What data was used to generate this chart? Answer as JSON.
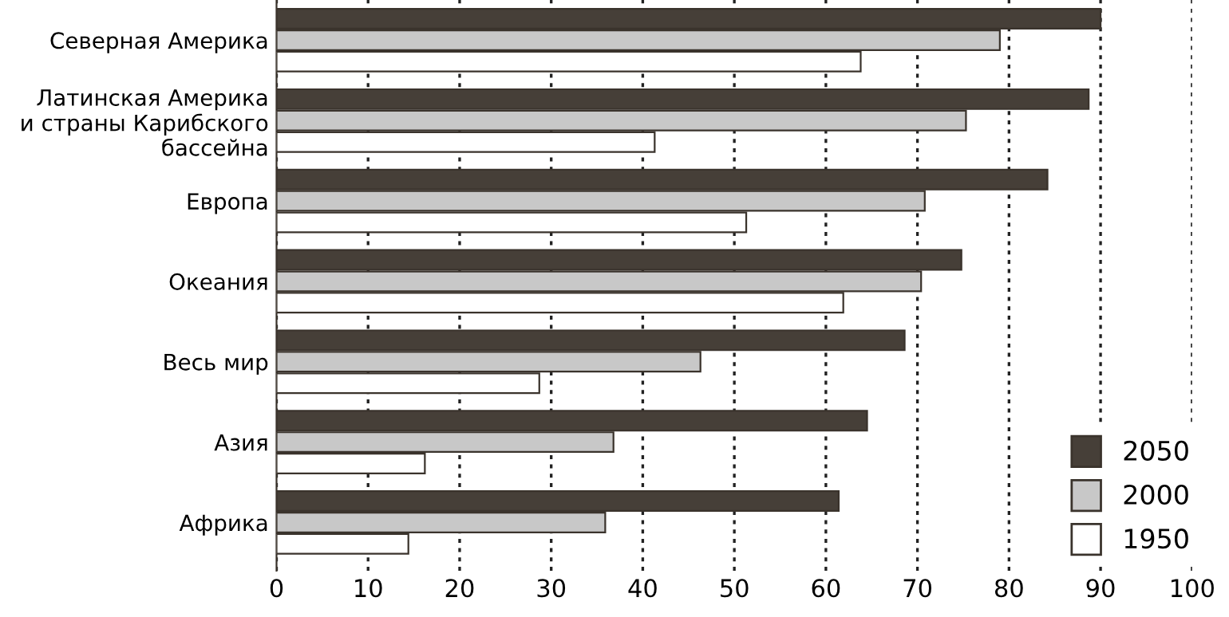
{
  "chart_data": {
    "type": "bar",
    "orientation": "horizontal",
    "categories": [
      "Северная Америка",
      "Латинская Америка\nи страны Карибского\nбассейна",
      "Европа",
      "Океания",
      "Весь мир",
      "Азия",
      "Африка"
    ],
    "series": [
      {
        "name": "2050",
        "color": "#463f38",
        "values": [
          90,
          88.7,
          84.2,
          74.8,
          68.6,
          64.5,
          61.4
        ]
      },
      {
        "name": "2000",
        "color": "#c8c8c8",
        "values": [
          79,
          75.3,
          70.8,
          70.4,
          46.3,
          36.8,
          35.9
        ]
      },
      {
        "name": "1950",
        "color": "#ffffff",
        "values": [
          63.8,
          41.3,
          51.3,
          61.9,
          28.7,
          16.2,
          14.4
        ]
      }
    ],
    "xlim": [
      0,
      100
    ],
    "xticks": [
      0,
      10,
      20,
      30,
      40,
      50,
      60,
      70,
      80,
      90,
      100
    ],
    "grid": "x",
    "legend": "bottom right"
  }
}
